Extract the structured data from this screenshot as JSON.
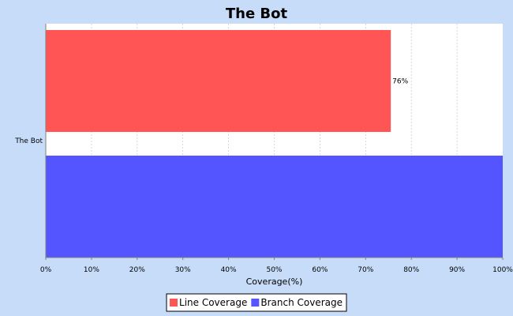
{
  "chart_data": {
    "type": "bar",
    "orientation": "horizontal",
    "title": "The Bot",
    "categories": [
      "The Bot"
    ],
    "series": [
      {
        "name": "Line Coverage",
        "values": [
          75.5
        ],
        "color": "#ff5555",
        "label": "76%"
      },
      {
        "name": "Branch Coverage",
        "values": [
          100
        ],
        "color": "#5555ff",
        "label": ""
      }
    ],
    "xlabel": "Coverage(%)",
    "ylabel": "",
    "xlim": [
      0,
      100
    ],
    "x_ticks": [
      0,
      10,
      20,
      30,
      40,
      50,
      60,
      70,
      80,
      90,
      100
    ],
    "x_tick_labels": [
      "0%",
      "10%",
      "20%",
      "30%",
      "40%",
      "50%",
      "60%",
      "70%",
      "80%",
      "90%",
      "100%"
    ],
    "grid": true,
    "legend_position": "bottom"
  }
}
